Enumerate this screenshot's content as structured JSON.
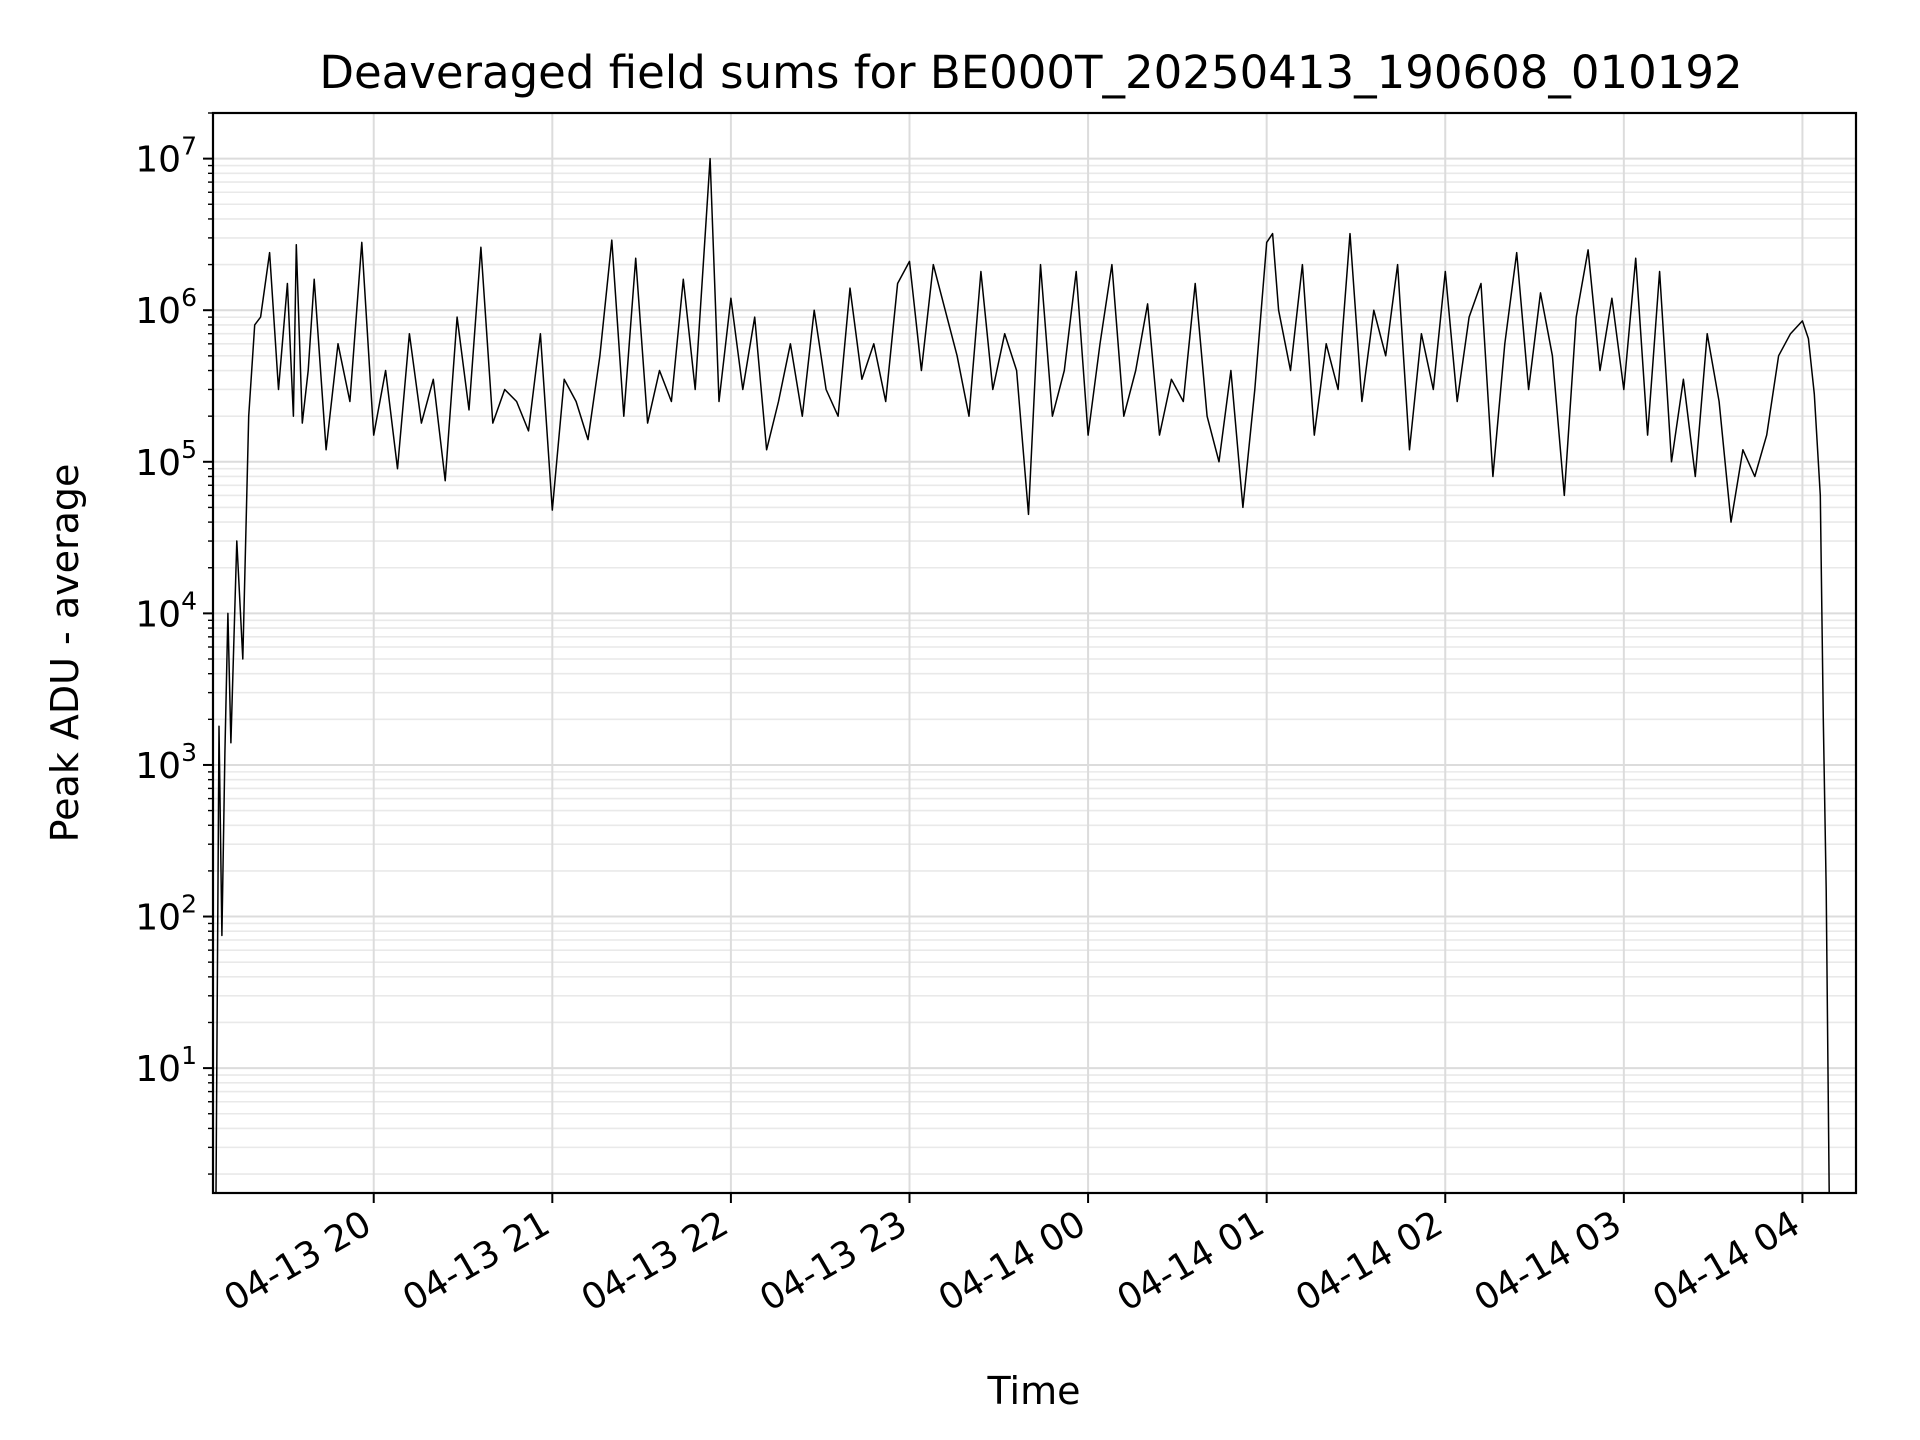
{
  "chart_data": {
    "type": "line",
    "title": "Deaveraged field sums for BE000T_20250413_190608_010192",
    "xlabel": "Time",
    "ylabel": "Peak ADU - average",
    "yscale": "log",
    "xlim": [
      "2025-04-13 19:06",
      "2025-04-14 04:18"
    ],
    "ylim": [
      1.5,
      20000000
    ],
    "x_ticks": [
      {
        "value": "2025-04-13 20:00",
        "label": "04-13 20"
      },
      {
        "value": "2025-04-13 21:00",
        "label": "04-13 21"
      },
      {
        "value": "2025-04-13 22:00",
        "label": "04-13 22"
      },
      {
        "value": "2025-04-13 23:00",
        "label": "04-13 23"
      },
      {
        "value": "2025-04-14 00:00",
        "label": "04-14 00"
      },
      {
        "value": "2025-04-14 01:00",
        "label": "04-14 01"
      },
      {
        "value": "2025-04-14 02:00",
        "label": "04-14 02"
      },
      {
        "value": "2025-04-14 03:00",
        "label": "04-14 03"
      },
      {
        "value": "2025-04-14 04:00",
        "label": "04-14 04"
      }
    ],
    "y_ticks": [
      {
        "value": 10,
        "base": "10",
        "exp": "1"
      },
      {
        "value": 100,
        "base": "10",
        "exp": "2"
      },
      {
        "value": 1000,
        "base": "10",
        "exp": "3"
      },
      {
        "value": 10000,
        "base": "10",
        "exp": "4"
      },
      {
        "value": 100000,
        "base": "10",
        "exp": "5"
      },
      {
        "value": 1000000,
        "base": "10",
        "exp": "6"
      },
      {
        "value": 10000000,
        "base": "10",
        "exp": "7"
      }
    ],
    "grid": true,
    "series_color": "#000000",
    "series": [
      {
        "x": [
          "2025-04-13 19:07",
          "2025-04-13 19:08",
          "2025-04-13 19:09",
          "2025-04-13 19:10",
          "2025-04-13 19:11",
          "2025-04-13 19:12",
          "2025-04-13 19:14",
          "2025-04-13 19:16",
          "2025-04-13 19:18",
          "2025-04-13 19:20",
          "2025-04-13 19:22",
          "2025-04-13 19:25",
          "2025-04-13 19:28",
          "2025-04-13 19:31",
          "2025-04-13 19:33",
          "2025-04-13 19:34",
          "2025-04-13 19:36",
          "2025-04-13 19:38",
          "2025-04-13 19:40",
          "2025-04-13 19:44",
          "2025-04-13 19:48",
          "2025-04-13 19:52",
          "2025-04-13 19:56",
          "2025-04-13 20:00",
          "2025-04-13 20:04",
          "2025-04-13 20:08",
          "2025-04-13 20:12",
          "2025-04-13 20:16",
          "2025-04-13 20:20",
          "2025-04-13 20:24",
          "2025-04-13 20:28",
          "2025-04-13 20:32",
          "2025-04-13 20:36",
          "2025-04-13 20:40",
          "2025-04-13 20:44",
          "2025-04-13 20:48",
          "2025-04-13 20:52",
          "2025-04-13 20:56",
          "2025-04-13 21:00",
          "2025-04-13 21:04",
          "2025-04-13 21:08",
          "2025-04-13 21:12",
          "2025-04-13 21:16",
          "2025-04-13 21:20",
          "2025-04-13 21:24",
          "2025-04-13 21:28",
          "2025-04-13 21:32",
          "2025-04-13 21:36",
          "2025-04-13 21:40",
          "2025-04-13 21:44",
          "2025-04-13 21:48",
          "2025-04-13 21:53",
          "2025-04-13 21:56",
          "2025-04-13 22:00",
          "2025-04-13 22:04",
          "2025-04-13 22:08",
          "2025-04-13 22:12",
          "2025-04-13 22:16",
          "2025-04-13 22:20",
          "2025-04-13 22:24",
          "2025-04-13 22:28",
          "2025-04-13 22:32",
          "2025-04-13 22:36",
          "2025-04-13 22:40",
          "2025-04-13 22:44",
          "2025-04-13 22:48",
          "2025-04-13 22:52",
          "2025-04-13 22:56",
          "2025-04-13 23:00",
          "2025-04-13 23:04",
          "2025-04-13 23:08",
          "2025-04-13 23:12",
          "2025-04-13 23:16",
          "2025-04-13 23:20",
          "2025-04-13 23:24",
          "2025-04-13 23:28",
          "2025-04-13 23:32",
          "2025-04-13 23:36",
          "2025-04-13 23:40",
          "2025-04-13 23:44",
          "2025-04-13 23:48",
          "2025-04-13 23:52",
          "2025-04-13 23:56",
          "2025-04-14 00:00",
          "2025-04-14 00:04",
          "2025-04-14 00:08",
          "2025-04-14 00:12",
          "2025-04-14 00:16",
          "2025-04-14 00:20",
          "2025-04-14 00:24",
          "2025-04-14 00:28",
          "2025-04-14 00:32",
          "2025-04-14 00:36",
          "2025-04-14 00:40",
          "2025-04-14 00:44",
          "2025-04-14 00:48",
          "2025-04-14 00:52",
          "2025-04-14 00:56",
          "2025-04-14 01:00",
          "2025-04-14 01:02",
          "2025-04-14 01:04",
          "2025-04-14 01:08",
          "2025-04-14 01:12",
          "2025-04-14 01:16",
          "2025-04-14 01:20",
          "2025-04-14 01:24",
          "2025-04-14 01:28",
          "2025-04-14 01:32",
          "2025-04-14 01:36",
          "2025-04-14 01:40",
          "2025-04-14 01:44",
          "2025-04-14 01:48",
          "2025-04-14 01:52",
          "2025-04-14 01:56",
          "2025-04-14 02:00",
          "2025-04-14 02:04",
          "2025-04-14 02:08",
          "2025-04-14 02:12",
          "2025-04-14 02:16",
          "2025-04-14 02:20",
          "2025-04-14 02:24",
          "2025-04-14 02:28",
          "2025-04-14 02:32",
          "2025-04-14 02:36",
          "2025-04-14 02:40",
          "2025-04-14 02:44",
          "2025-04-14 02:48",
          "2025-04-14 02:52",
          "2025-04-14 02:56",
          "2025-04-14 03:00",
          "2025-04-14 03:04",
          "2025-04-14 03:08",
          "2025-04-14 03:12",
          "2025-04-14 03:16",
          "2025-04-14 03:20",
          "2025-04-14 03:24",
          "2025-04-14 03:28",
          "2025-04-14 03:32",
          "2025-04-14 03:36",
          "2025-04-14 03:40",
          "2025-04-14 03:44",
          "2025-04-14 03:48",
          "2025-04-14 03:52",
          "2025-04-14 03:56",
          "2025-04-14 04:00",
          "2025-04-14 04:02",
          "2025-04-14 04:04",
          "2025-04-14 04:06",
          "2025-04-14 04:07",
          "2025-04-14 04:08",
          "2025-04-14 04:09"
        ],
        "y": [
          1.5,
          1800,
          75,
          1200,
          10000,
          1400,
          30000,
          5000,
          200000,
          800000,
          900000,
          2400000,
          300000,
          1500000,
          200000,
          2700000,
          180000,
          400000,
          1600000,
          120000,
          600000,
          250000,
          2800000,
          150000,
          400000,
          90000,
          700000,
          180000,
          350000,
          75000,
          900000,
          220000,
          2600000,
          180000,
          300000,
          250000,
          160000,
          700000,
          48000,
          350000,
          250000,
          140000,
          500000,
          2900000,
          200000,
          2200000,
          180000,
          400000,
          250000,
          1600000,
          300000,
          10000000,
          250000,
          1200000,
          300000,
          900000,
          120000,
          250000,
          600000,
          200000,
          1000000,
          300000,
          200000,
          1400000,
          350000,
          600000,
          250000,
          1500000,
          2100000,
          400000,
          2000000,
          1000000,
          500000,
          200000,
          1800000,
          300000,
          700000,
          400000,
          45000,
          2000000,
          200000,
          400000,
          1800000,
          150000,
          600000,
          2000000,
          200000,
          400000,
          1100000,
          150000,
          350000,
          250000,
          1500000,
          200000,
          100000,
          400000,
          50000,
          300000,
          2800000,
          3200000,
          1000000,
          400000,
          2000000,
          150000,
          600000,
          300000,
          3200000,
          250000,
          1000000,
          500000,
          2000000,
          120000,
          700000,
          300000,
          1800000,
          250000,
          900000,
          1500000,
          80000,
          600000,
          2400000,
          300000,
          1300000,
          500000,
          60000,
          900000,
          2500000,
          400000,
          1200000,
          300000,
          2200000,
          150000,
          1800000,
          100000,
          350000,
          80000,
          700000,
          250000,
          40000,
          120000,
          80000,
          150000,
          500000,
          700000,
          850000,
          650000,
          280000,
          60000,
          2000,
          150,
          1.5
        ]
      }
    ]
  }
}
